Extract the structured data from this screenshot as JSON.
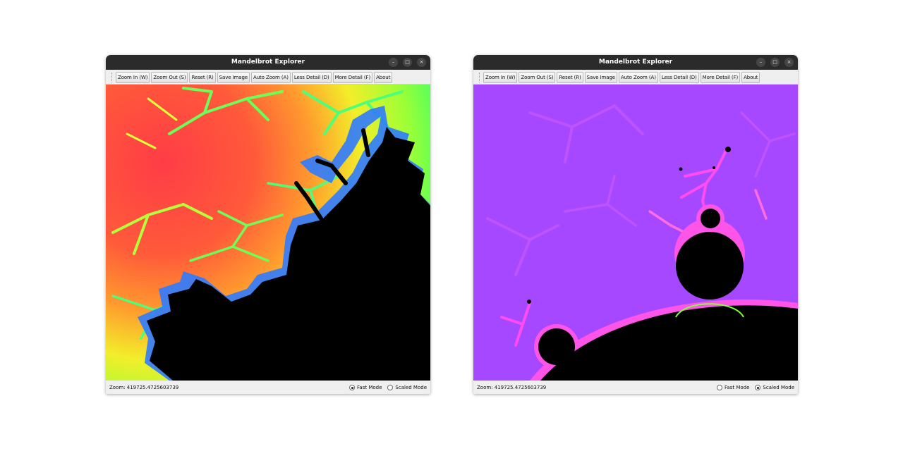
{
  "windows": [
    {
      "title": "Mandelbrot Explorer",
      "controls": {
        "minimize": "–",
        "maximize": "□",
        "close": "×"
      },
      "toolbar": [
        "Zoom In (W)",
        "Zoom Out (S)",
        "Reset (R)",
        "Save Image",
        "Auto Zoom (A)",
        "Less Detail (D)",
        "More Detail (F)",
        "About"
      ],
      "status": {
        "zoom": "Zoom: 419725.4725603739",
        "fast_mode_label": "Fast Mode",
        "scaled_mode_label": "Scaled Mode",
        "selected_mode": "Fast Mode"
      },
      "palette": "rainbow red-orange-yellow-green-blue"
    },
    {
      "title": "Mandelbrot Explorer",
      "controls": {
        "minimize": "–",
        "maximize": "□",
        "close": "×"
      },
      "toolbar": [
        "Zoom In (W)",
        "Zoom Out (S)",
        "Reset (R)",
        "Save Image",
        "Auto Zoom (A)",
        "Less Detail (D)",
        "More Detail (F)",
        "About"
      ],
      "status": {
        "zoom": "Zoom: 419725.4725603739",
        "fast_mode_label": "Fast Mode",
        "scaled_mode_label": "Scaled Mode",
        "selected_mode": "Scaled Mode"
      },
      "palette": "purple-magenta"
    }
  ],
  "colors": {
    "titlebar": "#2b2b2b",
    "set_interior": "#000000",
    "rainbow_red": "#ff3c3c",
    "rainbow_green": "#3cff3c",
    "rainbow_blue": "#3c6aff",
    "purple": "#a548ff",
    "magenta": "#ff3cff"
  }
}
